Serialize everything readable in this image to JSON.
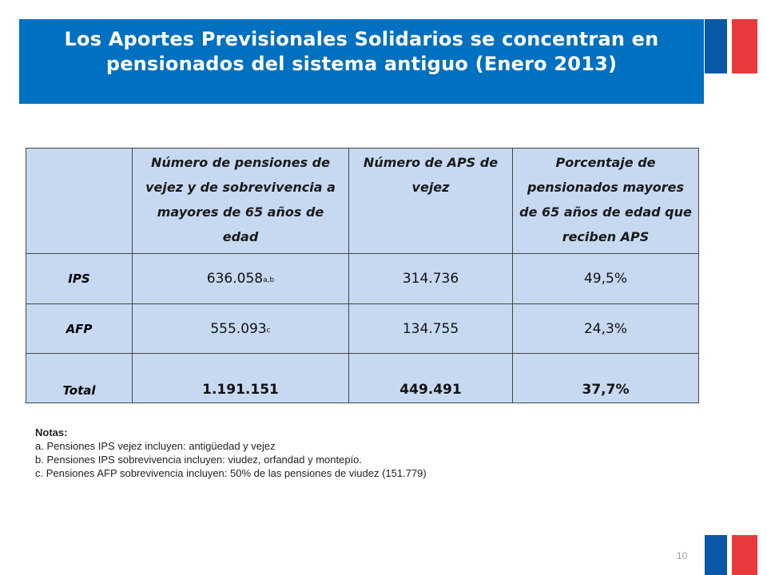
{
  "slide": {
    "title_line1": "Los Aportes Previsionales Solidarios  se concentran en",
    "title_line2": "pensionados del sistema antiguo (Enero 2013)",
    "page_number": "10",
    "colors": {
      "title_bg": "#0070c0",
      "table_bg": "#c6d9f1",
      "flag_blue": "#0b57a8",
      "flag_red": "#e8393c"
    }
  },
  "table": {
    "headers": [
      "",
      "Número de pensiones de vejez y de sobrevivencia a mayores de 65 años de edad",
      "Número de APS de vejez",
      "Porcentaje de pensionados mayores de 65 años de edad que reciben APS"
    ],
    "rows": [
      {
        "label": "IPS",
        "pensiones": "636.058",
        "pensiones_note": "a,b",
        "aps": "314.736",
        "porcentaje": "49,5%"
      },
      {
        "label": "AFP",
        "pensiones": "555.093",
        "pensiones_note": "c",
        "aps": "134.755",
        "porcentaje": "24,3%"
      },
      {
        "label": "Total",
        "pensiones": "1.191.151",
        "pensiones_note": "",
        "aps": "449.491",
        "porcentaje": "37,7%"
      }
    ]
  },
  "notes": {
    "title": "Notas:",
    "items": [
      "a. Pensiones IPS vejez incluyen: antigüedad y vejez",
      "b. Pensiones IPS sobrevivencia incluyen: viudez, orfandad y montepío.",
      "c. Pensiones AFP sobrevivencia incluyen: 50% de las pensiones de viudez (151.779)"
    ]
  }
}
